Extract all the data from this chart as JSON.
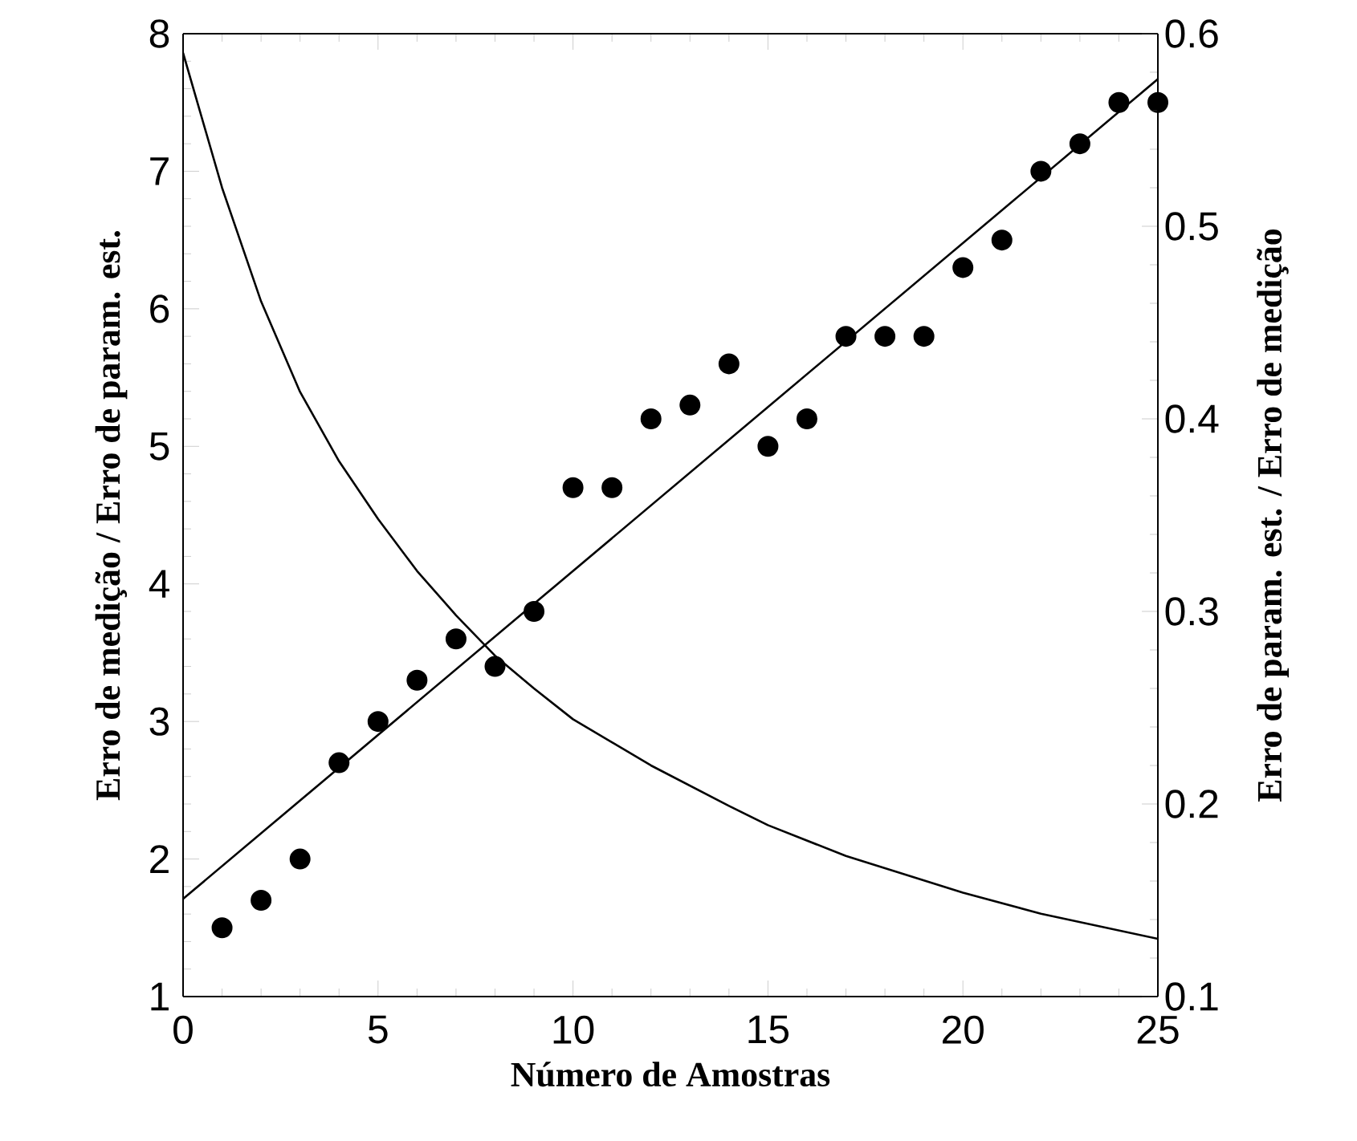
{
  "chart_data": {
    "type": "scatter",
    "xlabel": "Número de Amostras",
    "ylabel": "Erro de medição / Erro de param. est.",
    "y2label": "Erro de param. est. / Erro de medição",
    "xlim": [
      0,
      25
    ],
    "xticks": [
      0,
      5,
      10,
      15,
      20,
      25
    ],
    "ylim": [
      1,
      8
    ],
    "yticks": [
      1,
      2,
      3,
      4,
      5,
      6,
      7,
      8
    ],
    "y2lim": [
      0.1,
      0.6
    ],
    "y2ticks": [
      0.1,
      0.2,
      0.3,
      0.4,
      0.5,
      0.6
    ],
    "grid": false,
    "series": [
      {
        "marker": "circle",
        "color": "#000000",
        "x": [
          1,
          2,
          3,
          4,
          5,
          6,
          7,
          8,
          9,
          10,
          11,
          12,
          13,
          14,
          15,
          16,
          17,
          18,
          19,
          20,
          21,
          22,
          23,
          24,
          25
        ],
        "values": [
          1.5,
          1.7,
          2.0,
          2.7,
          3.0,
          3.3,
          3.6,
          3.4,
          3.8,
          4.7,
          4.7,
          5.2,
          5.3,
          5.6,
          5.0,
          5.2,
          5.8,
          5.8,
          5.8,
          6.3,
          6.5,
          7.0,
          7.2,
          7.5,
          7.5
        ]
      },
      {
        "type": "line",
        "marker": "none",
        "color": "#000000",
        "x": [
          0,
          25
        ],
        "values": [
          1.71,
          7.67
        ]
      },
      {
        "type": "line",
        "marker": "none",
        "axis": "y2",
        "color": "#000000",
        "x": [
          0,
          1,
          2,
          3,
          4,
          5,
          6,
          7,
          8,
          9,
          10,
          12,
          14,
          15,
          17,
          20,
          22,
          25
        ],
        "values": [
          0.59,
          0.52,
          0.461,
          0.414,
          0.378,
          0.348,
          0.321,
          0.298,
          0.277,
          0.26,
          0.244,
          0.22,
          0.199,
          0.189,
          0.173,
          0.154,
          0.143,
          0.13
        ]
      }
    ]
  }
}
